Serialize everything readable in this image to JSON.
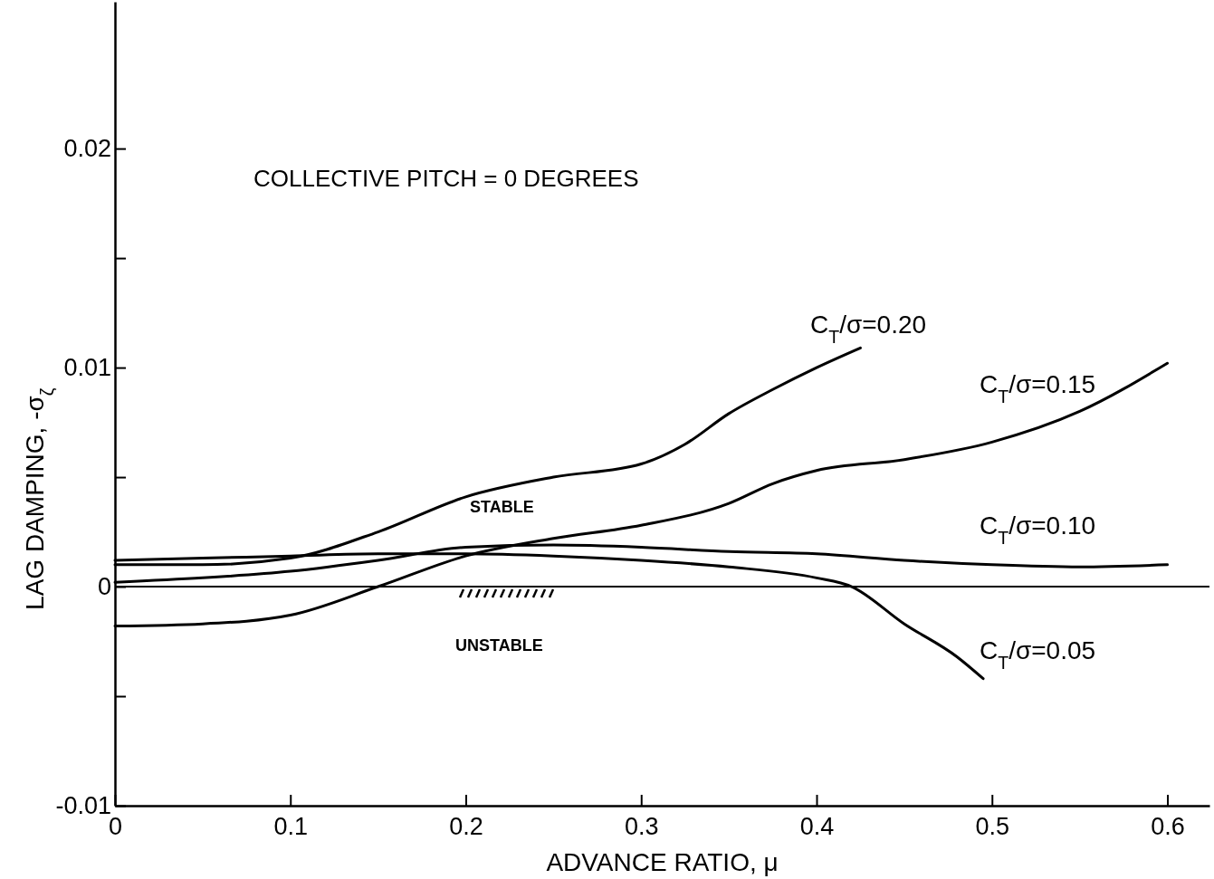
{
  "chart_data": {
    "type": "line",
    "xlabel": "ADVANCE RATIO, μ",
    "ylabel": "LAG DAMPING, -σ$_{ζ}$",
    "xlim": [
      0,
      0.624
    ],
    "ylim": [
      -0.01,
      0.0267
    ],
    "xticks": [
      0,
      0.1,
      0.2,
      0.3,
      0.4,
      0.5,
      0.6
    ],
    "yticks": [
      -0.01,
      {
        "value": -0.005,
        "label": null
      },
      0,
      {
        "value": 0.005,
        "label": null
      },
      0.01,
      {
        "value": 0.015,
        "label": null
      },
      0.02
    ],
    "grid": false,
    "marker": "none",
    "line_style": "solid",
    "ref_lines": [
      {
        "axis": "y",
        "value": 0,
        "label": null
      }
    ],
    "annotations": [
      "COLLECTIVE PITCH = 0 DEGREES",
      "STABLE",
      "UNSTABLE"
    ],
    "series": [
      {
        "name": "C$_{T}$/σ=0.20",
        "color": "#000000",
        "x": [
          0,
          0.05,
          0.1,
          0.15,
          0.2,
          0.25,
          0.3,
          0.325,
          0.35,
          0.375,
          0.4,
          0.425
        ],
        "values": [
          0.001,
          0.001,
          0.0013,
          0.0025,
          0.0041,
          0.005,
          0.0056,
          0.0065,
          0.0079,
          0.009,
          0.01,
          0.0109
        ]
      },
      {
        "name": "C$_{T}$/σ=0.15",
        "color": "#000000",
        "x": [
          0,
          0.05,
          0.1,
          0.15,
          0.2,
          0.25,
          0.3,
          0.35,
          0.375,
          0.4,
          0.45,
          0.5,
          0.55,
          0.6
        ],
        "values": [
          -0.0018,
          -0.0017,
          -0.0013,
          0,
          0.0014,
          0.0022,
          0.0028,
          0.0038,
          0.0047,
          0.0053,
          0.0058,
          0.0066,
          0.008,
          0.0102
        ]
      },
      {
        "name": "C$_{T}$/σ=0.10",
        "color": "#000000",
        "x": [
          0,
          0.05,
          0.1,
          0.15,
          0.2,
          0.25,
          0.3,
          0.35,
          0.4,
          0.45,
          0.5,
          0.55,
          0.6
        ],
        "values": [
          0.0002,
          0.0004,
          0.0007,
          0.0012,
          0.0018,
          0.0019,
          0.0018,
          0.0016,
          0.0015,
          0.0012,
          0.001,
          0.0009,
          0.001
        ]
      },
      {
        "name": "C$_{T}$/σ=0.05",
        "color": "#000000",
        "x": [
          0,
          0.05,
          0.1,
          0.15,
          0.2,
          0.25,
          0.3,
          0.35,
          0.4,
          0.42,
          0.45,
          0.48,
          0.495
        ],
        "values": [
          0.0012,
          0.0013,
          0.0014,
          0.0015,
          0.0015,
          0.0014,
          0.0012,
          0.0009,
          0.0004,
          0,
          -0.0017,
          -0.0032,
          -0.0042
        ]
      }
    ]
  }
}
